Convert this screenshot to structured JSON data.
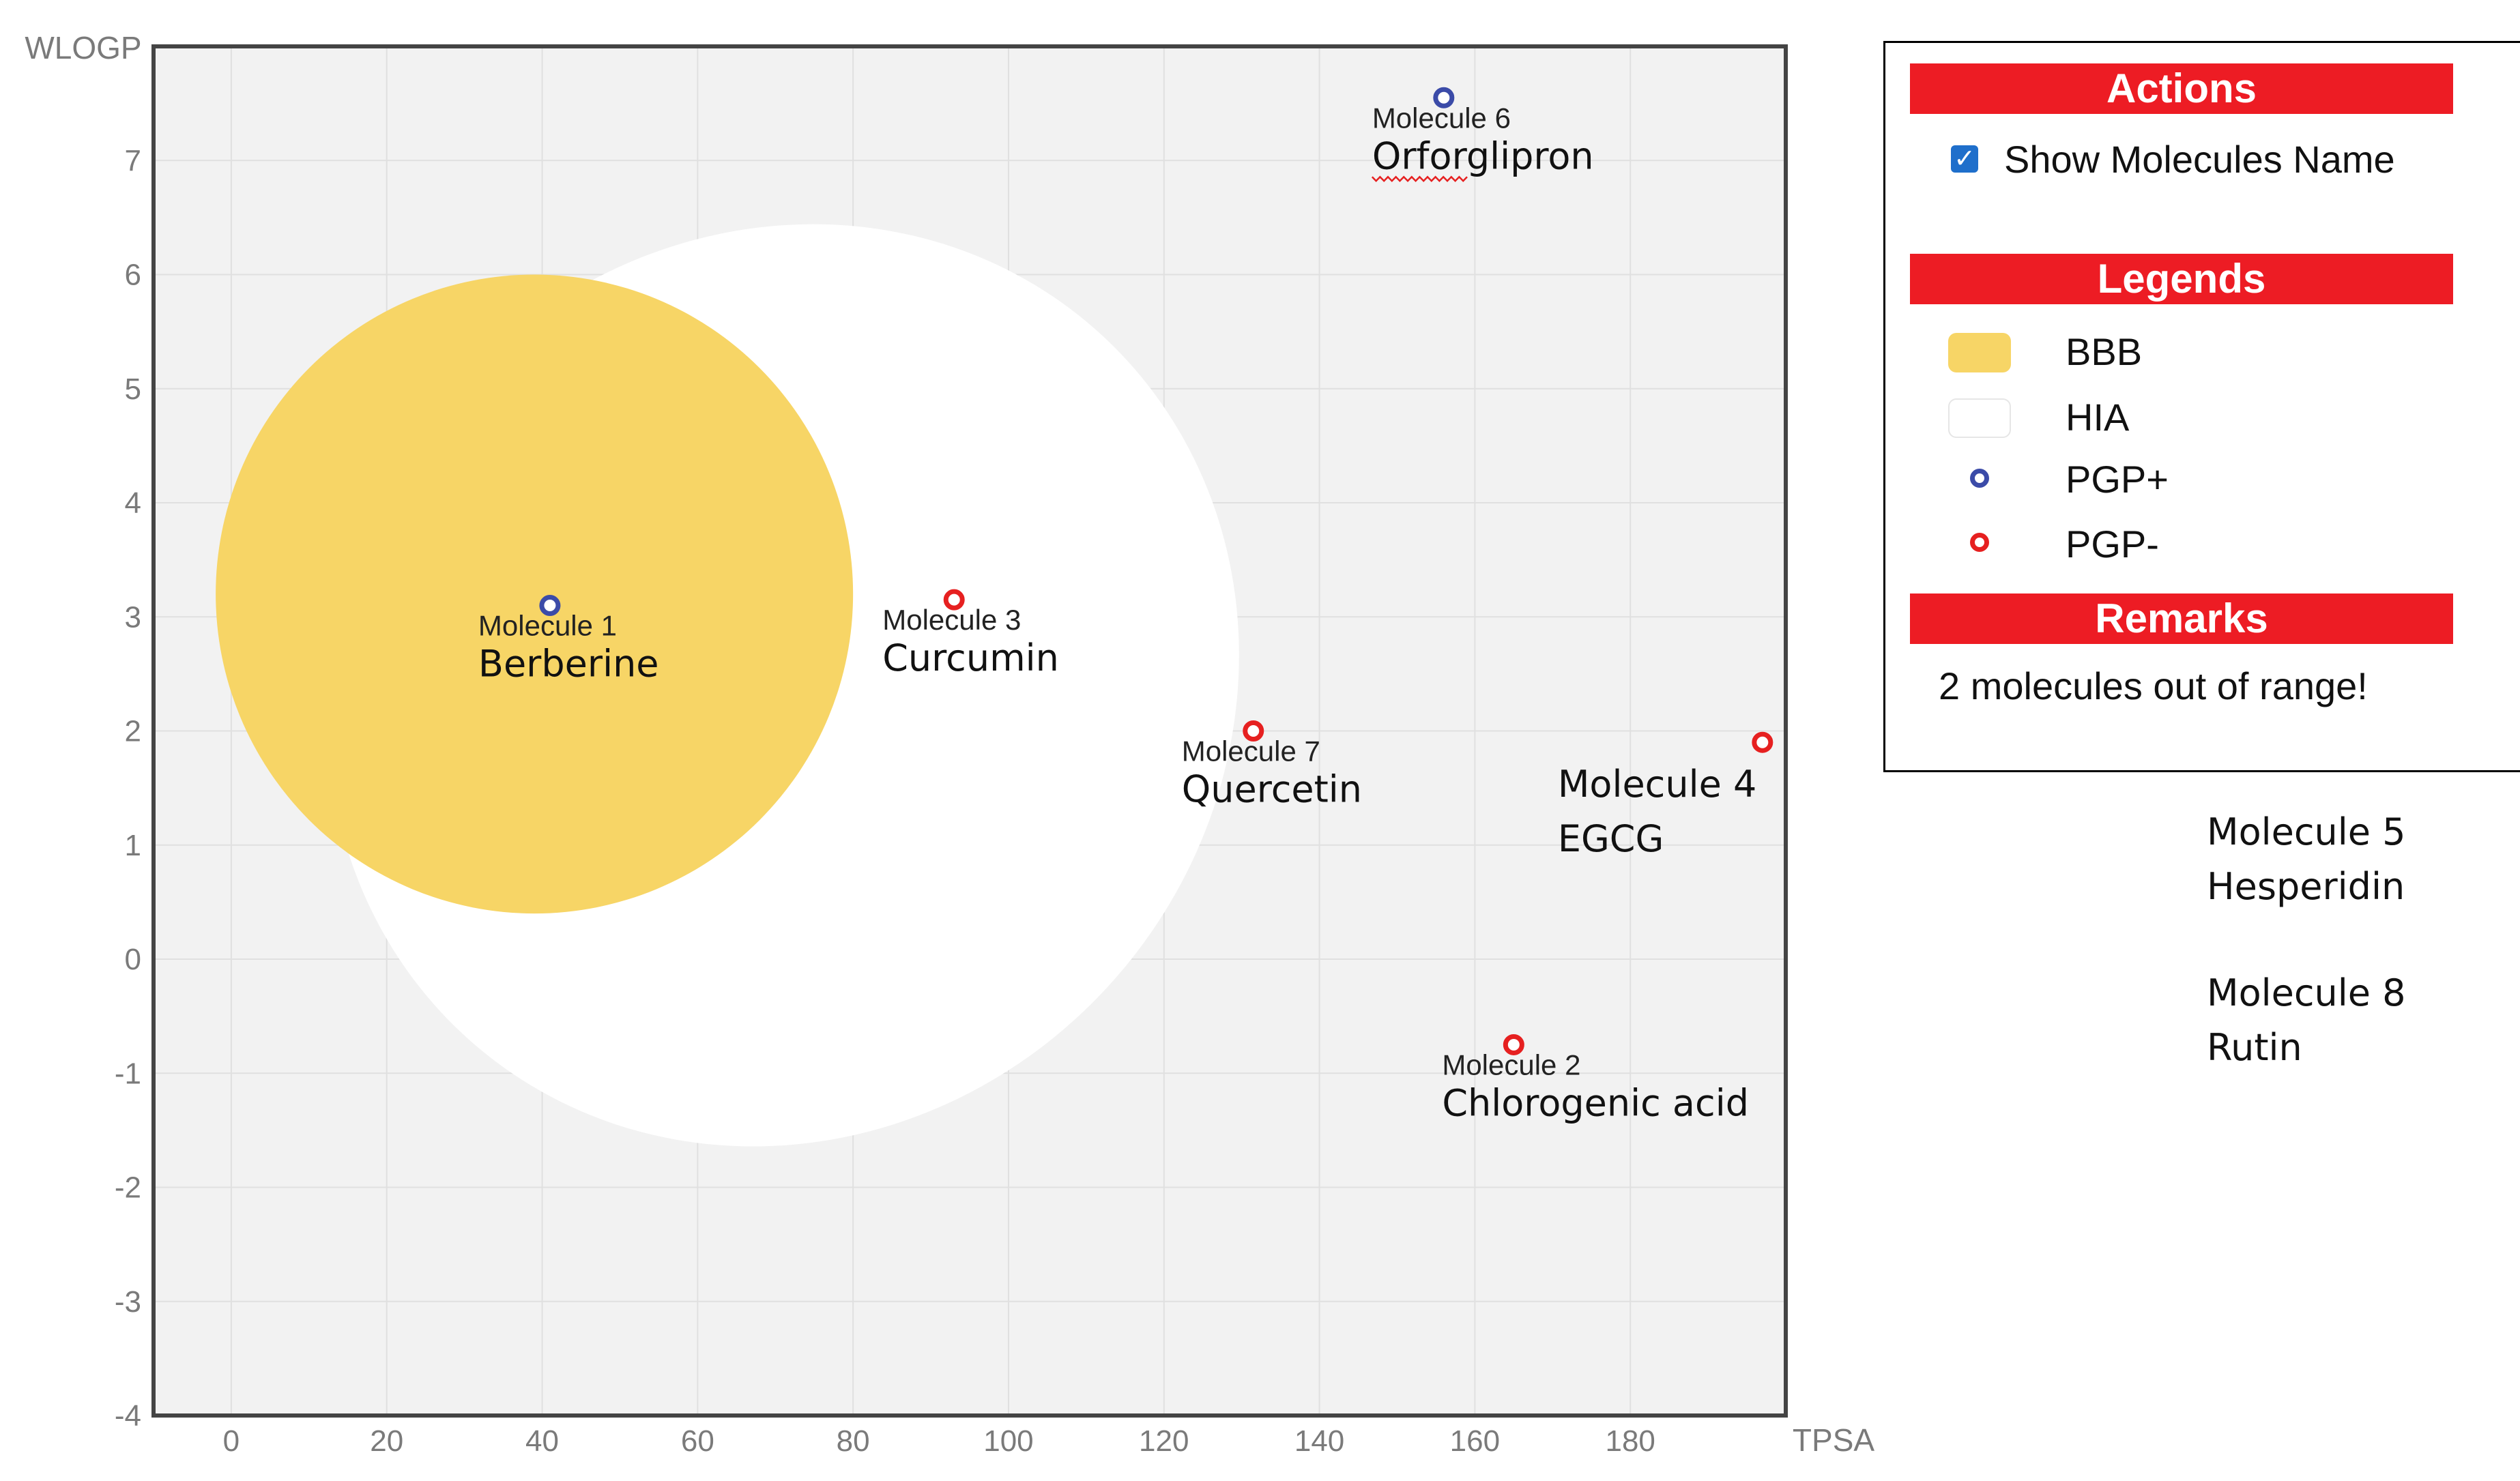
{
  "chart_data": {
    "type": "scatter",
    "xlabel": "TPSA",
    "ylabel": "WLOGP",
    "xlim": [
      -10,
      200
    ],
    "ylim": [
      -4,
      8
    ],
    "xticks": [
      0,
      20,
      40,
      60,
      80,
      100,
      120,
      140,
      160,
      180
    ],
    "yticks": [
      -4,
      -3,
      -2,
      -1,
      0,
      1,
      2,
      3,
      4,
      5,
      6,
      7
    ],
    "regions": [
      {
        "name": "HIA",
        "label": "HIA",
        "color": "#ffffff",
        "cx": 71,
        "cy": 2.4,
        "rx": 57,
        "ry": 4.15,
        "angle": 40
      },
      {
        "name": "BBB",
        "label": "BBB",
        "color": "#f7d566",
        "cx": 39,
        "cy": 3.2,
        "rx": 41,
        "ry": 2.8,
        "angle": 0
      }
    ],
    "points": [
      {
        "id": "Molecule 1",
        "name": "Berberine",
        "x": 41,
        "y": 3.1,
        "pgp": "PGP+"
      },
      {
        "id": "Molecule 3",
        "name": "Curcumin",
        "x": 93,
        "y": 3.15,
        "pgp": "PGP-"
      },
      {
        "id": "Molecule 7",
        "name": "Quercetin",
        "x": 131.5,
        "y": 2.0,
        "pgp": "PGP-"
      },
      {
        "id": "Molecule 4",
        "name": "EGCG",
        "x": 197,
        "y": 1.9,
        "pgp": "PGP-"
      },
      {
        "id": "Molecule 6",
        "name": "Orforglipron",
        "x": 156,
        "y": 7.55,
        "pgp": "PGP+"
      },
      {
        "id": "Molecule 2",
        "name": "Chlorogenic acid",
        "x": 165,
        "y": -0.75,
        "pgp": "PGP-"
      }
    ],
    "pgp_colors": {
      "PGP+": "#3b4ba8",
      "PGP-": "#e62020"
    }
  },
  "panel": {
    "actions_title": "Actions",
    "show_names_label": "Show Molecules Name",
    "show_names_checked": true,
    "legends_title": "Legends",
    "legend_items": [
      {
        "label": "BBB",
        "icon": "bbb-swatch",
        "color": "#f7d566"
      },
      {
        "label": "HIA",
        "icon": "hia-swatch",
        "color": "#ffffff"
      },
      {
        "label": "PGP+",
        "icon": "pgp-plus-marker",
        "color": "#3b4ba8"
      },
      {
        "label": "PGP-",
        "icon": "pgp-minus-marker",
        "color": "#e62020"
      }
    ],
    "remarks_title": "Remarks",
    "remarks_text": "2 molecules out of range!"
  },
  "out_of_range": [
    {
      "id": "Molecule 5",
      "name": "Hesperidin"
    },
    {
      "id": "Molecule 8",
      "name": "Rutin"
    }
  ],
  "colors": {
    "accent": "#ed1c24",
    "plot_bg": "#f2f2f2",
    "grid": "#e0e0e0"
  }
}
